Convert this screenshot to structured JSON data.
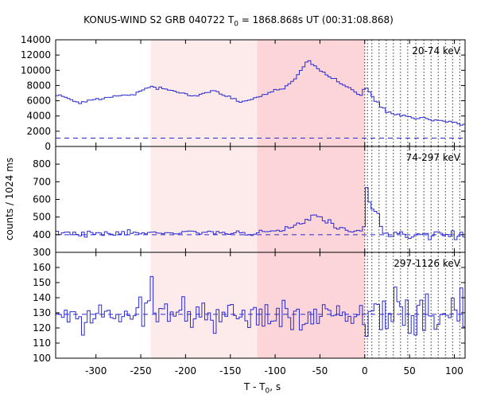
{
  "chart_data": {
    "type": "line",
    "title_main": "KONUS-WIND S2 GRB 040722 T",
    "title_sub": "0",
    "title_rest": " = 1868.868s UT (00:31:08.868)",
    "xlabel_main": "T - T",
    "xlabel_sub": "0",
    "xlabel_rest": ", s",
    "ylabel": "counts / 1024 ms",
    "xlim": [
      -345,
      112
    ],
    "x_ticks": [
      -300,
      -250,
      -200,
      -150,
      -100,
      -50,
      0,
      50,
      100
    ],
    "x_tick_labels": [
      "-300",
      "-250",
      "-200",
      "-150",
      "-100",
      "-50",
      "0",
      "50",
      "100"
    ],
    "colors": {
      "series": "#2a2ad0",
      "shade_light": "#fdeaea",
      "shade_dark": "#fbd5d8",
      "axis": "#000000"
    },
    "shaded_intervals": [
      {
        "x": [
          -239,
          -120
        ],
        "shade": "light"
      },
      {
        "x": [
          -120,
          0
        ],
        "shade": "dark"
      }
    ],
    "vertical_dotted_lines": [
      0,
      3,
      8,
      16,
      24,
      32,
      40,
      48,
      57,
      66,
      74,
      82,
      90,
      98,
      106
    ],
    "panels": [
      {
        "label": "20-74 keV",
        "ylim": [
          0,
          14000
        ],
        "y_ticks": [
          0,
          2000,
          4000,
          6000,
          8000,
          10000,
          12000,
          14000
        ],
        "y_tick_labels": [
          "0",
          "2000",
          "4000",
          "6000",
          "8000",
          "10000",
          "12000",
          "14000"
        ],
        "background": 1100,
        "profile": [
          [
            -345,
            6900
          ],
          [
            -330,
            6300
          ],
          [
            -318,
            5700
          ],
          [
            -300,
            6200
          ],
          [
            -280,
            6600
          ],
          [
            -262,
            6700
          ],
          [
            -248,
            7400
          ],
          [
            -238,
            7800
          ],
          [
            -220,
            7500
          ],
          [
            -205,
            7000
          ],
          [
            -195,
            6600
          ],
          [
            -182,
            6900
          ],
          [
            -168,
            7300
          ],
          [
            -150,
            6500
          ],
          [
            -138,
            5900
          ],
          [
            -125,
            6200
          ],
          [
            -112,
            6900
          ],
          [
            -100,
            7300
          ],
          [
            -90,
            7700
          ],
          [
            -80,
            8600
          ],
          [
            -70,
            10200
          ],
          [
            -63,
            11300
          ],
          [
            -55,
            10600
          ],
          [
            -45,
            9500
          ],
          [
            -35,
            9000
          ],
          [
            -25,
            8200
          ],
          [
            -15,
            7600
          ],
          [
            -8,
            6800
          ],
          [
            -3,
            6500
          ],
          [
            0,
            8000
          ],
          [
            3,
            7600
          ],
          [
            6,
            6900
          ],
          [
            10,
            6200
          ],
          [
            15,
            5700
          ],
          [
            20,
            5000
          ],
          [
            25,
            4600
          ],
          [
            35,
            4200
          ],
          [
            50,
            3800
          ],
          [
            70,
            3600
          ],
          [
            90,
            3300
          ],
          [
            112,
            2900
          ]
        ]
      },
      {
        "label": "74-297 keV",
        "ylim": [
          300,
          900
        ],
        "y_ticks": [
          300,
          400,
          500,
          600,
          700,
          800
        ],
        "y_tick_labels": [
          "300",
          "400",
          "500",
          "600",
          "700",
          "800"
        ],
        "background": 400,
        "profile": [
          [
            -345,
            410
          ],
          [
            -320,
            405
          ],
          [
            -300,
            408
          ],
          [
            -270,
            410
          ],
          [
            -240,
            415
          ],
          [
            -200,
            412
          ],
          [
            -160,
            415
          ],
          [
            -130,
            405
          ],
          [
            -110,
            420
          ],
          [
            -90,
            430
          ],
          [
            -75,
            455
          ],
          [
            -68,
            470
          ],
          [
            -60,
            500
          ],
          [
            -55,
            510
          ],
          [
            -48,
            490
          ],
          [
            -40,
            470
          ],
          [
            -30,
            440
          ],
          [
            -15,
            425
          ],
          [
            -5,
            415
          ],
          [
            -1,
            440
          ],
          [
            0,
            530
          ],
          [
            1,
            750
          ],
          [
            2,
            660
          ],
          [
            4,
            600
          ],
          [
            6,
            590
          ],
          [
            10,
            550
          ],
          [
            15,
            520
          ],
          [
            18,
            440
          ],
          [
            25,
            410
          ],
          [
            40,
            405
          ],
          [
            60,
            395
          ],
          [
            80,
            400
          ],
          [
            100,
            395
          ],
          [
            112,
            390
          ]
        ]
      },
      {
        "label": "297-1126 keV",
        "ylim": [
          100,
          170
        ],
        "y_ticks": [
          100,
          110,
          120,
          130,
          140,
          150,
          160
        ],
        "y_tick_labels": [
          "100",
          "110",
          "120",
          "130",
          "140",
          "150",
          "160"
        ],
        "background": 129,
        "profile": [
          [
            -345,
            129
          ],
          [
            0,
            129
          ],
          [
            112,
            129
          ]
        ]
      }
    ]
  }
}
